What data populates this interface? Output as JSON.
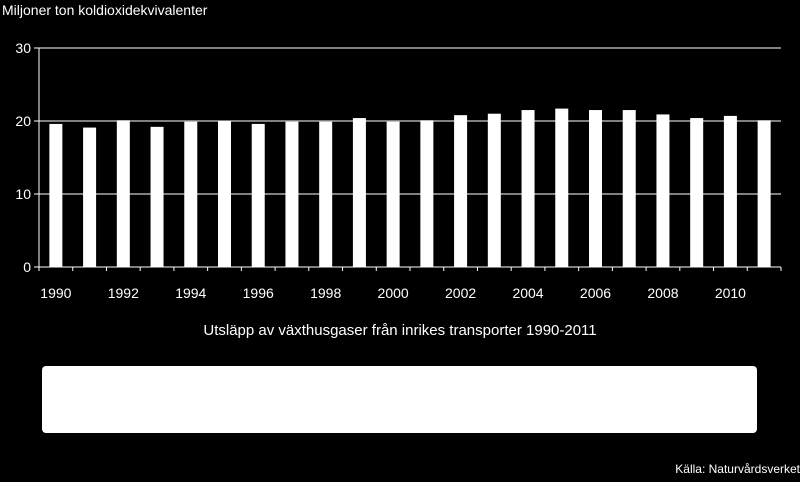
{
  "chart_data": {
    "type": "bar",
    "ylabel": "Miljoner ton koldioxidekvivalenter",
    "xlabel": "",
    "title": "Utsläpp av växthusgaser från inrikes transporter 1990-2011",
    "source": "Källa: Naturvårdsverket",
    "ylim": [
      0,
      30
    ],
    "yticks": [
      0,
      10,
      20,
      30
    ],
    "xtick_labels": [
      "1990",
      "1992",
      "1994",
      "1996",
      "1998",
      "2000",
      "2002",
      "2004",
      "2006",
      "2008",
      "2010"
    ],
    "categories": [
      "1990",
      "1991",
      "1992",
      "1993",
      "1994",
      "1995",
      "1996",
      "1997",
      "1998",
      "1999",
      "2000",
      "2001",
      "2002",
      "2003",
      "2004",
      "2005",
      "2006",
      "2007",
      "2008",
      "2009",
      "2010",
      "2011"
    ],
    "values": [
      19.6,
      19.1,
      20.1,
      19.2,
      19.9,
      20.0,
      19.6,
      19.9,
      19.9,
      20.4,
      19.9,
      20.1,
      20.8,
      21.0,
      21.5,
      21.7,
      21.5,
      21.5,
      20.9,
      20.4,
      20.7,
      20.1
    ],
    "grid": true,
    "colors": {
      "bar": "#ffffff",
      "background": "#000000",
      "axis": "#ffffff"
    }
  }
}
